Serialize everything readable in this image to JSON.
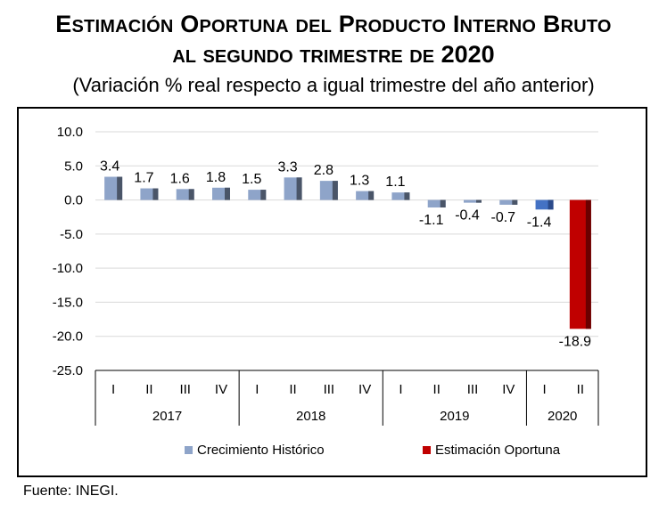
{
  "header": {
    "title_line1": "Estimación Oportuna del Producto Interno Bruto",
    "title_line2_words": "al segundo trimestre de",
    "title_line2_year": "2020",
    "subtitle": "(Variación % real respecto a igual trimestre del año anterior)"
  },
  "chart_data": {
    "type": "bar",
    "ylim": [
      -25,
      10
    ],
    "yticks": [
      "10.0",
      "5.0",
      "0.0",
      "-5.0",
      "-10.0",
      "-15.0",
      "-20.0",
      "-25.0"
    ],
    "ytick_values": [
      10,
      5,
      0,
      -5,
      -10,
      -15,
      -20,
      -25
    ],
    "categories": [
      "I",
      "II",
      "III",
      "IV",
      "I",
      "II",
      "III",
      "IV",
      "I",
      "II",
      "III",
      "IV",
      "I",
      "II"
    ],
    "years": [
      {
        "label": "2017",
        "count": 4
      },
      {
        "label": "2018",
        "count": 4
      },
      {
        "label": "2019",
        "count": 4
      },
      {
        "label": "2020",
        "count": 2
      }
    ],
    "values": [
      3.4,
      1.7,
      1.6,
      1.8,
      1.5,
      3.3,
      2.8,
      1.3,
      1.1,
      -1.1,
      -0.4,
      -0.7,
      -1.4,
      -18.9
    ],
    "labels": [
      "3.4",
      "1.7",
      "1.6",
      "1.8",
      "1.5",
      "3.3",
      "2.8",
      "1.3",
      "1.1",
      "-1.1",
      "-0.4",
      "-0.7",
      "-1.4",
      "-18.9"
    ],
    "bar_kind": [
      "historico",
      "historico",
      "historico",
      "historico",
      "historico",
      "historico",
      "historico",
      "historico",
      "historico",
      "historico",
      "historico",
      "historico",
      "highlight",
      "oportuna"
    ],
    "legend": [
      {
        "key": "historico",
        "label": "Crecimiento  Histórico",
        "color": "#8ea4c9"
      },
      {
        "key": "oportuna",
        "label": "Estimación Oportuna",
        "color": "#c00000"
      }
    ],
    "colors": {
      "historico": "#8ea4c9",
      "historico_side": "#4a5568",
      "highlight": "#4472c4",
      "highlight_side": "#2a4a8a",
      "oportuna": "#c00000",
      "oportuna_side": "#6b0000",
      "grid": "#d9d9d9"
    }
  },
  "footer": {
    "source": "Fuente: INEGI."
  }
}
